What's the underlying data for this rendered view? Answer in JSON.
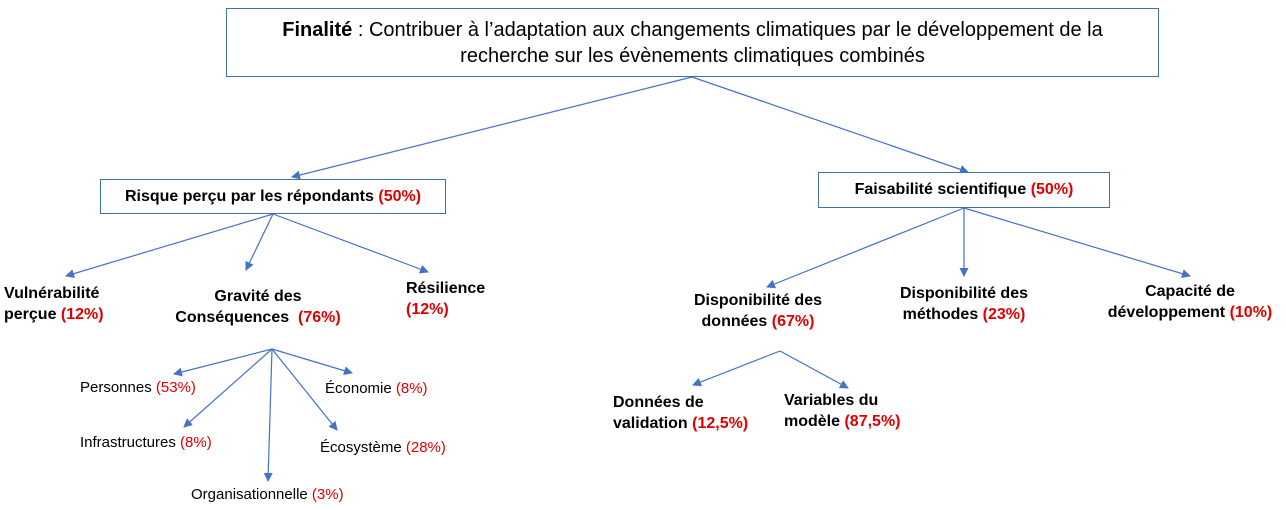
{
  "root": {
    "label": "Finalité",
    "sep": " : ",
    "line1": "Contribuer à l’adaptation aux changements climatiques par le développement de la",
    "line2": "recherche sur les évènements climatiques combinés"
  },
  "risk": {
    "label": "Risque perçu par les répondants",
    "pct": "(50%)",
    "children": {
      "vulnerability": {
        "line1": "Vulnérabilité",
        "line2": "perçue",
        "pct": "(12%)"
      },
      "severity": {
        "line1": "Gravité des",
        "line2": "Conséquences",
        "pct": "(76%)",
        "children": {
          "persons": {
            "label": "Personnes",
            "pct": "(53%)"
          },
          "infrastructures": {
            "label": "Infrastructures",
            "pct": "(8%)"
          },
          "organisational": {
            "label": "Organisationnelle",
            "pct": "(3%)"
          },
          "economy": {
            "label": "Économie",
            "pct": "(8%)"
          },
          "ecosystem": {
            "label": "Écosystème",
            "pct": "(28%)"
          }
        }
      },
      "resilience": {
        "line1": "Résilience",
        "pct": "(12%)"
      }
    }
  },
  "feasibility": {
    "label": "Faisabilité scientifique",
    "pct": "(50%)",
    "children": {
      "data": {
        "line1": "Disponibilité des",
        "line2": "données",
        "pct": "(67%)",
        "children": {
          "validation": {
            "line1": "Données de",
            "line2": "validation",
            "pct": "(12,5%)"
          },
          "model_vars": {
            "line1": "Variables du",
            "line2": "modèle",
            "pct": "(87,5%)"
          }
        }
      },
      "methods": {
        "line1": "Disponibilité des",
        "line2": "méthodes",
        "pct": "(23%)"
      },
      "capacity": {
        "line1": "Capacité de",
        "line2": "développement",
        "pct": "(10%)"
      }
    }
  },
  "colors": {
    "edge": "#4472c4",
    "box_border": "#41719c",
    "pct": "#e00000"
  }
}
